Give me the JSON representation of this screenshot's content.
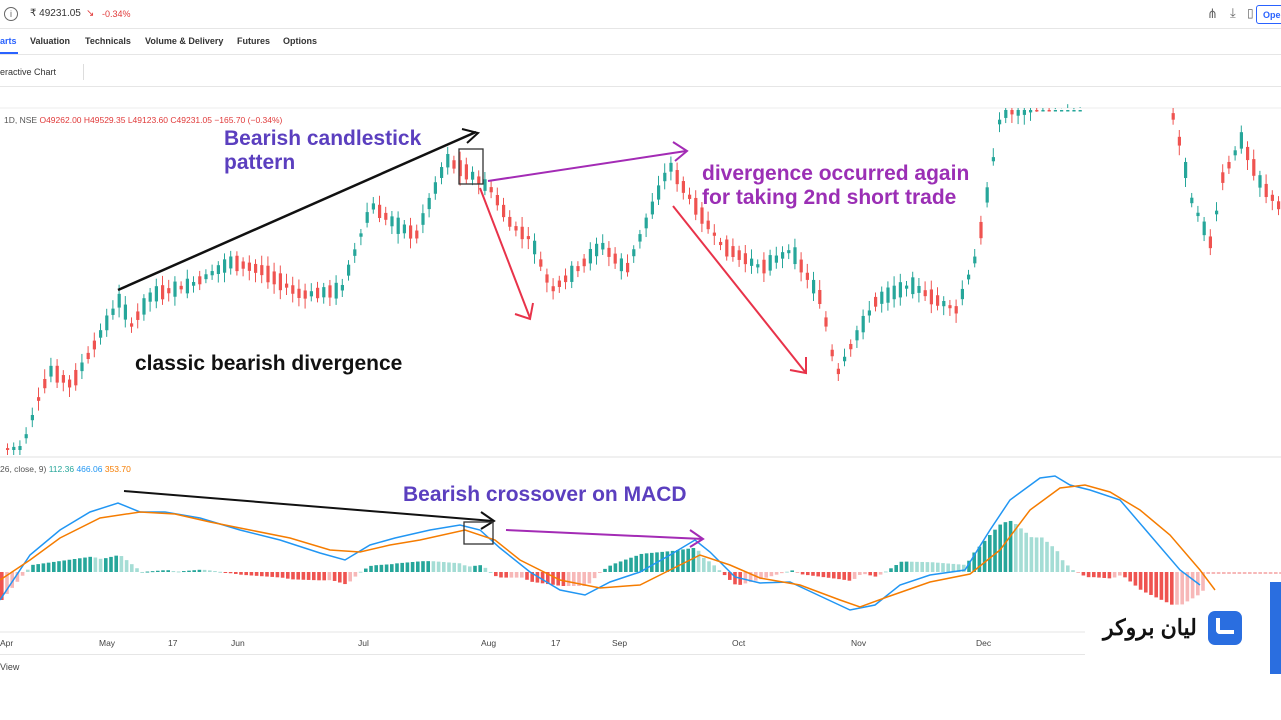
{
  "header": {
    "price": "₹ 49231.05",
    "change": "-0.34%",
    "trend_icon": "trend-down-icon",
    "open_label": "Ope",
    "accent": "#2962ff",
    "down_color": "#e03a3a"
  },
  "tabs": [
    {
      "label": "arts",
      "active": true
    },
    {
      "label": "Valuation"
    },
    {
      "label": "Technicals"
    },
    {
      "label": "Volume & Delivery"
    },
    {
      "label": "Futures"
    },
    {
      "label": "Options"
    }
  ],
  "subbar": {
    "label": "eractive Chart"
  },
  "legend": {
    "interval": "1D, NSE",
    "ohlc": "O49262.00 H49529.35 L49123.60 C49231.05 −165.70 (−0.34%)"
  },
  "macd_legend": {
    "params": "26, close, 9)",
    "macd": "112.36",
    "signal": "466.06",
    "hist": "353.70"
  },
  "annotations": {
    "bearish_pattern": "Bearish candlestick pattern",
    "bearish_pattern_l1": "Bearish candlestick",
    "bearish_pattern_l2": "pattern",
    "classic": "classic bearish divergence",
    "again_l1": "divergence occurred again",
    "again_l2": "for taking 2nd short trade",
    "macd_crossover": "Bearish crossover on MACD"
  },
  "x_axis": [
    "Apr",
    "May",
    "17",
    "Jun",
    "Jul",
    "Aug",
    "17",
    "Sep",
    "Oct",
    "Nov",
    "Dec"
  ],
  "bottom": {
    "label": "View"
  },
  "brand": {
    "text": "لیان بروکر",
    "logo_icon": "brand-logo-icon"
  },
  "chart_data": {
    "type": "candlestick",
    "symbol_interval": "1D, NSE",
    "x_axis_labels": [
      "Apr",
      "May",
      "17",
      "Jun",
      "Jul",
      "Aug",
      "17",
      "Sep",
      "Oct",
      "Nov",
      "Dec"
    ],
    "last_ohlc": {
      "open": 49262.0,
      "high": 49529.35,
      "low": 49123.6,
      "close": 49231.05,
      "change": -165.7,
      "change_pct": -0.34
    },
    "macd": {
      "params": "(… 26, close, 9)",
      "macd": 112.36,
      "signal": 466.06,
      "histogram": 353.7
    },
    "colors": {
      "up": "#26a69a",
      "down": "#ef5350",
      "macd_line": "#2196f3",
      "signal_line": "#f57c00"
    }
  }
}
